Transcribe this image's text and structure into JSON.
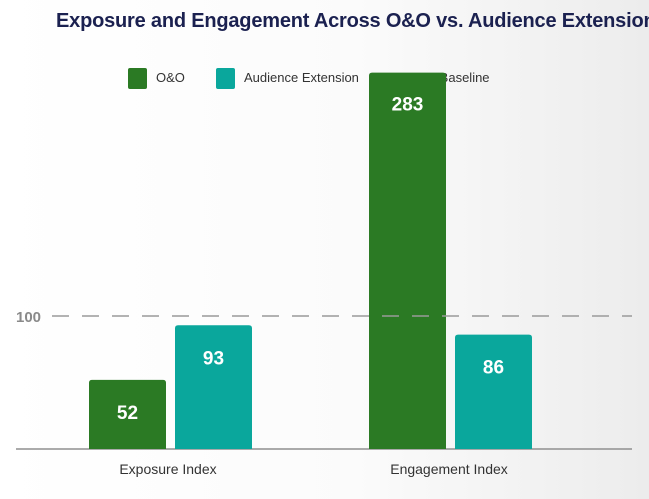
{
  "chart_data": {
    "type": "bar",
    "title": "Exposure and Engagement Across O&O vs. Audience Extension",
    "categories": [
      "Exposure Index",
      "Engagement Index"
    ],
    "series": [
      {
        "name": "O&O",
        "values": [
          52,
          283
        ],
        "color": "#2b7a24"
      },
      {
        "name": "Audience Extension",
        "values": [
          93,
          86
        ],
        "color": "#0aa79c"
      }
    ],
    "baseline": {
      "name": "DV Baseline",
      "value": 100,
      "label": "100",
      "style": "dashed",
      "color": "#9a9a9a"
    },
    "legend_placement": "top-center",
    "grid": false,
    "ylim": [
      0,
      300
    ],
    "xlabel": "",
    "ylabel": ""
  }
}
